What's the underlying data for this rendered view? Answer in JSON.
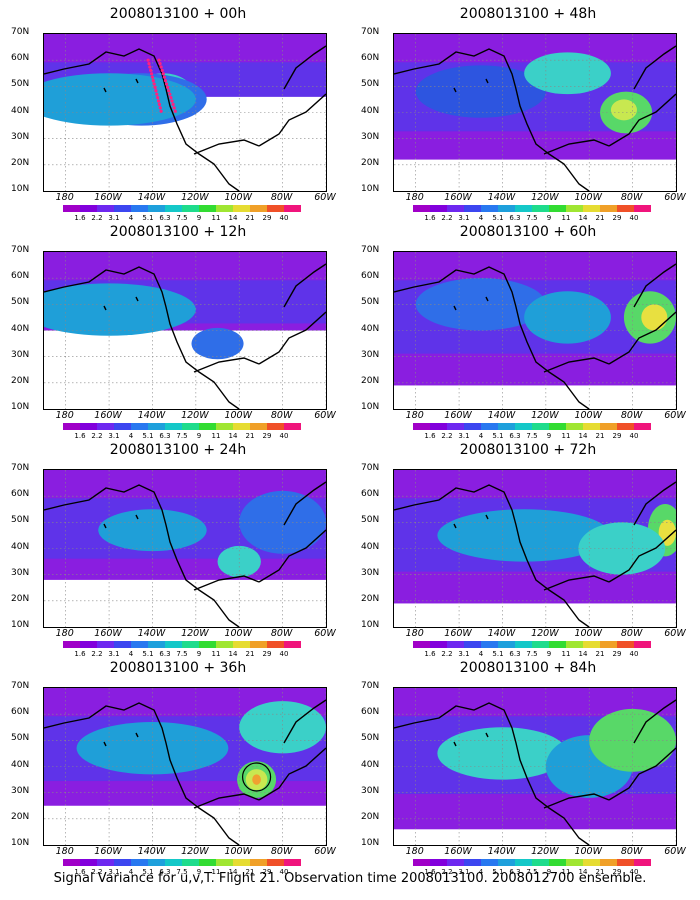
{
  "panels": [
    {
      "title": "2008013100 + 00h",
      "col": 0,
      "row": 0,
      "spots": [
        [
          -135,
          47,
          14,
          8,
          "#3bd0c8"
        ],
        [
          -136,
          47,
          7,
          4,
          "#a8e860"
        ],
        [
          -145,
          45,
          30,
          10,
          "#2f6ee8"
        ],
        [
          -160,
          45,
          40,
          10,
          "#1f9fd8"
        ]
      ],
      "fill": 0.4,
      "flight_dots": true,
      "circle": false
    },
    {
      "title": "2008013100 + 48h",
      "col": 1,
      "row": 0,
      "spots": [
        [
          -83,
          40,
          12,
          8,
          "#58d868"
        ],
        [
          -84,
          41,
          6,
          4,
          "#c8e850"
        ],
        [
          -150,
          48,
          30,
          10,
          "#2d55e0"
        ],
        [
          -110,
          55,
          20,
          8,
          "#3bd0c8"
        ]
      ],
      "fill": 0.8,
      "flight_dots": false,
      "circle": false
    },
    {
      "title": "2008013100 + 12h",
      "col": 0,
      "row": 1,
      "spots": [
        [
          -140,
          47,
          12,
          6,
          "#58d868"
        ],
        [
          -140,
          47,
          6,
          3,
          "#c8e850"
        ],
        [
          -160,
          48,
          40,
          10,
          "#1f9fd8"
        ],
        [
          -110,
          35,
          12,
          6,
          "#2f6ee8"
        ]
      ],
      "fill": 0.5,
      "flight_dots": false,
      "circle": false
    },
    {
      "title": "2008013100 + 60h",
      "col": 1,
      "row": 1,
      "spots": [
        [
          -72,
          45,
          12,
          10,
          "#58d868"
        ],
        [
          -70,
          45,
          6,
          5,
          "#e8e040"
        ],
        [
          -150,
          50,
          30,
          10,
          "#2f6ee8"
        ],
        [
          -110,
          45,
          20,
          10,
          "#1f9fd8"
        ]
      ],
      "fill": 0.85,
      "flight_dots": false,
      "circle": false
    },
    {
      "title": "2008013100 + 24h",
      "col": 0,
      "row": 2,
      "spots": [
        [
          -100,
          35,
          10,
          6,
          "#3bd0c8"
        ],
        [
          -140,
          47,
          25,
          8,
          "#1f9fd8"
        ],
        [
          -80,
          50,
          20,
          12,
          "#2f6ee8"
        ]
      ],
      "fill": 0.7,
      "flight_dots": false,
      "circle": false
    },
    {
      "title": "2008013100 + 72h",
      "col": 1,
      "row": 2,
      "spots": [
        [
          -65,
          47,
          8,
          10,
          "#58d868"
        ],
        [
          -64,
          46,
          4,
          5,
          "#e8e040"
        ],
        [
          -130,
          45,
          40,
          10,
          "#1f9fd8"
        ],
        [
          -85,
          40,
          20,
          10,
          "#3bd0c8"
        ]
      ],
      "fill": 0.85,
      "flight_dots": false,
      "circle": false
    },
    {
      "title": "2008013100 + 36h",
      "col": 0,
      "row": 3,
      "spots": [
        [
          -92,
          35,
          9,
          7,
          "#58d868"
        ],
        [
          -92,
          35,
          5,
          4,
          "#c8e850"
        ],
        [
          -92,
          35,
          2,
          2,
          "#f0a030"
        ],
        [
          -140,
          47,
          35,
          10,
          "#1f9fd8"
        ],
        [
          -80,
          55,
          20,
          10,
          "#3bd0c8"
        ]
      ],
      "fill": 0.75,
      "flight_dots": false,
      "circle": true
    },
    {
      "title": "2008013100 + 84h",
      "col": 1,
      "row": 3,
      "spots": [
        [
          -140,
          45,
          30,
          10,
          "#3bd0c8"
        ],
        [
          -100,
          40,
          20,
          12,
          "#1f9fd8"
        ],
        [
          -80,
          50,
          20,
          12,
          "#58d868"
        ]
      ],
      "fill": 0.9,
      "flight_dots": false,
      "circle": false
    }
  ],
  "lat_labels": [
    "70N",
    "60N",
    "50N",
    "40N",
    "30N",
    "20N",
    "10N"
  ],
  "lon_labels": [
    "180",
    "160W",
    "140W",
    "120W",
    "100W",
    "80W",
    "60W"
  ],
  "colorbar": {
    "labels": [
      "1.6",
      "2.2",
      "3.1",
      "4",
      "5.1",
      "6.3",
      "7.5",
      "9",
      "11",
      "14",
      "21",
      "29",
      "40"
    ],
    "colors": [
      "#a000c8",
      "#8200dc",
      "#6e28f0",
      "#3c46f0",
      "#2878f0",
      "#1ea0dc",
      "#14c8c8",
      "#1edc8c",
      "#32dc32",
      "#a0e632",
      "#e6dc32",
      "#f0a028",
      "#f05028",
      "#f0147c"
    ]
  },
  "footer": "Signal Variance for u,v,T. Flight 21. Observation time 2008013100. 2008012700 ensemble."
}
